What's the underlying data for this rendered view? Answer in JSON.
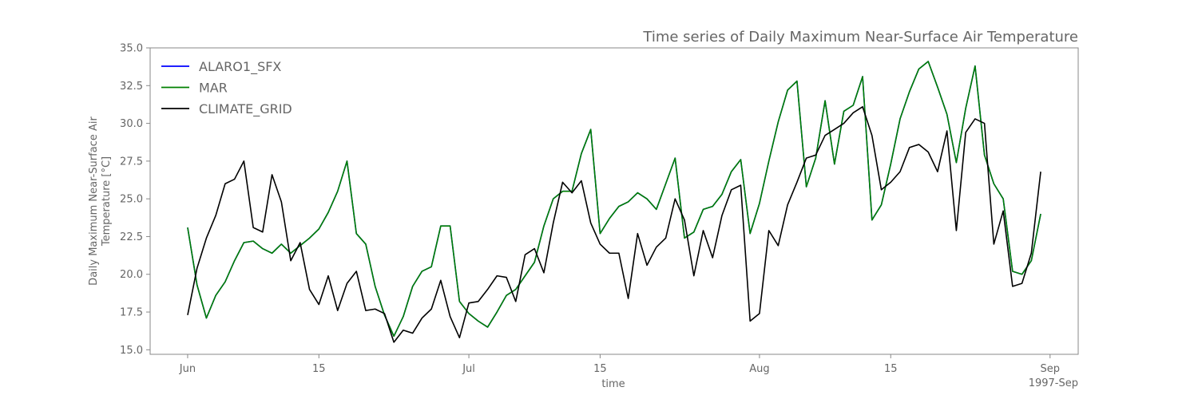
{
  "chart_data": {
    "type": "line",
    "title": "Time series of Daily Maximum Near-Surface Air Temperature",
    "xlabel": "time",
    "ylabel_line1": "Daily Maximum Near-Surface Air",
    "ylabel_line2": "Temperature [°C]",
    "x_start": "1997-06-01",
    "x_end": "1997-09-01",
    "x_offset_label": "1997-Sep",
    "xlim": [
      "1997-05-28",
      "1997-09-04"
    ],
    "ylim": [
      14.7,
      35.0
    ],
    "yticks": [
      15.0,
      17.5,
      20.0,
      22.5,
      25.0,
      27.5,
      30.0,
      32.5,
      35.0
    ],
    "ytick_labels": [
      "15.0",
      "17.5",
      "20.0",
      "22.5",
      "25.0",
      "27.5",
      "30.0",
      "32.5",
      "35.0"
    ],
    "xticks": [
      {
        "date": "1997-06-01",
        "label": "Jun"
      },
      {
        "date": "1997-06-15",
        "label": "15"
      },
      {
        "date": "1997-07-01",
        "label": "Jul"
      },
      {
        "date": "1997-07-15",
        "label": "15"
      },
      {
        "date": "1997-08-01",
        "label": "Aug"
      },
      {
        "date": "1997-08-15",
        "label": "15"
      },
      {
        "date": "1997-09-01",
        "label": "Sep"
      }
    ],
    "grid": false,
    "legend_position": "top-left",
    "series": [
      {
        "name": "ALARO1_SFX",
        "color": "#0000ff",
        "start": "1997-06-01",
        "values": [
          23.1,
          19.3,
          17.1,
          18.6,
          19.5,
          20.9,
          22.1,
          22.2,
          21.7,
          21.4,
          22.0,
          21.4,
          21.9,
          22.4,
          23.0,
          24.1,
          25.5,
          27.5,
          22.7,
          22.0,
          19.2,
          17.3,
          15.9,
          17.2,
          19.2,
          20.2,
          20.5,
          23.2,
          23.2,
          18.2,
          17.4,
          16.9,
          16.5,
          17.5,
          18.6,
          19.0,
          19.9,
          20.8,
          23.2,
          25.0,
          25.5,
          25.5,
          28.0,
          29.6,
          22.7,
          23.7,
          24.5,
          24.8,
          25.4,
          25.0,
          24.3,
          26.0,
          27.7,
          22.4,
          22.8,
          24.3,
          24.5,
          25.3,
          26.8,
          27.6,
          22.7,
          24.7,
          27.5,
          30.1,
          32.2,
          32.8,
          25.8,
          27.7,
          31.5,
          27.3,
          30.8,
          31.2,
          33.1,
          23.6,
          24.6,
          27.3,
          30.3,
          32.1,
          33.6,
          34.1,
          32.4,
          30.6,
          27.4,
          31.0,
          33.8,
          27.9,
          26.0,
          25.0,
          20.2,
          20.0,
          20.9,
          24.0
        ]
      },
      {
        "name": "MAR",
        "color": "#008000",
        "start": "1997-06-01",
        "values": [
          23.1,
          19.3,
          17.1,
          18.6,
          19.5,
          20.9,
          22.1,
          22.2,
          21.7,
          21.4,
          22.0,
          21.4,
          21.9,
          22.4,
          23.0,
          24.1,
          25.5,
          27.5,
          22.7,
          22.0,
          19.2,
          17.3,
          15.9,
          17.2,
          19.2,
          20.2,
          20.5,
          23.2,
          23.2,
          18.2,
          17.4,
          16.9,
          16.5,
          17.5,
          18.6,
          19.0,
          19.9,
          20.8,
          23.2,
          25.0,
          25.5,
          25.5,
          28.0,
          29.6,
          22.7,
          23.7,
          24.5,
          24.8,
          25.4,
          25.0,
          24.3,
          26.0,
          27.7,
          22.4,
          22.8,
          24.3,
          24.5,
          25.3,
          26.8,
          27.6,
          22.7,
          24.7,
          27.5,
          30.1,
          32.2,
          32.8,
          25.8,
          27.7,
          31.5,
          27.3,
          30.8,
          31.2,
          33.1,
          23.6,
          24.6,
          27.3,
          30.3,
          32.1,
          33.6,
          34.1,
          32.4,
          30.6,
          27.4,
          31.0,
          33.8,
          27.9,
          26.0,
          25.0,
          20.2,
          20.0,
          20.9,
          24.0
        ]
      },
      {
        "name": "CLIMATE_GRID",
        "color": "#000000",
        "start": "1997-06-01",
        "values": [
          17.3,
          20.4,
          22.4,
          23.9,
          26.0,
          26.3,
          27.5,
          23.1,
          22.8,
          26.6,
          24.8,
          20.9,
          22.1,
          19.0,
          18.0,
          19.9,
          17.6,
          19.4,
          20.2,
          17.6,
          17.7,
          17.4,
          15.5,
          16.3,
          16.1,
          17.1,
          17.7,
          19.6,
          17.2,
          15.8,
          18.1,
          18.2,
          19.0,
          19.9,
          19.8,
          18.2,
          21.3,
          21.7,
          20.1,
          23.4,
          26.1,
          25.4,
          26.2,
          23.4,
          22.0,
          21.4,
          21.4,
          18.4,
          22.7,
          20.6,
          21.8,
          22.4,
          25.0,
          23.6,
          19.9,
          22.9,
          21.1,
          23.9,
          25.6,
          25.9,
          16.9,
          17.4,
          22.9,
          21.9,
          24.6,
          26.1,
          27.7,
          27.9,
          29.2,
          29.6,
          30.0,
          30.7,
          31.1,
          29.2,
          25.6,
          26.1,
          26.8,
          28.4,
          28.6,
          28.1,
          26.8,
          29.5,
          22.9,
          29.4,
          30.3,
          30.0,
          22.0,
          24.2,
          19.2,
          19.4,
          21.4,
          26.8
        ]
      }
    ]
  }
}
